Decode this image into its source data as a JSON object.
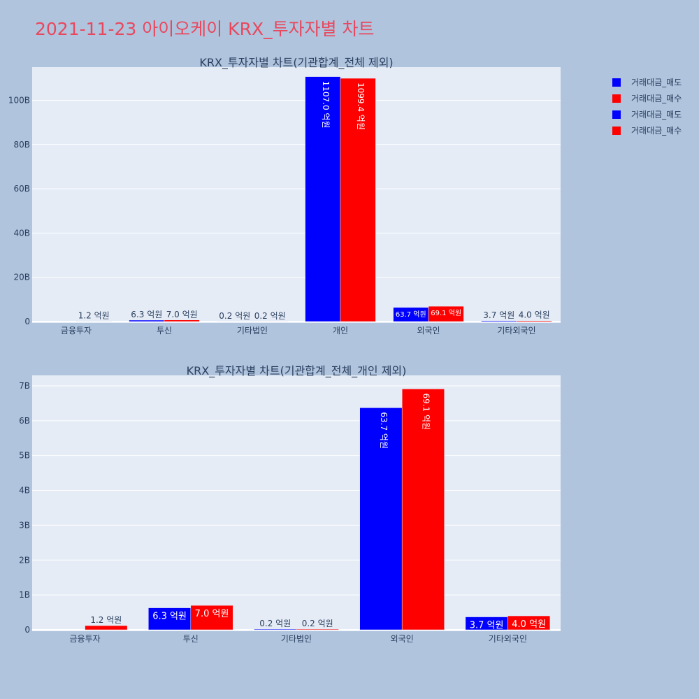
{
  "page": {
    "title": "2021-11-23 아이오케이 KRX_투자자별 차트"
  },
  "legend": [
    {
      "label": "거래대금_매도",
      "color": "#0000ff"
    },
    {
      "label": "거래대금_매수",
      "color": "#ff0000"
    },
    {
      "label": "거래대금_매도",
      "color": "#0000ff"
    },
    {
      "label": "거래대금_매수",
      "color": "#ff0000"
    }
  ],
  "colors": {
    "sell": "#0000ff",
    "buy": "#ff0000",
    "plot_bg": "#e5ecf6",
    "grid": "#ffffff",
    "axis_text": "#2a3f5f"
  },
  "chart_data": [
    {
      "type": "bar",
      "title": "KRX_투자자별 차트(기관합계_전체 제외)",
      "categories": [
        "금융투자",
        "투신",
        "기타법인",
        "개인",
        "외국인",
        "기타외국인"
      ],
      "ylim": [
        0,
        115
      ],
      "yticks": [
        0,
        20,
        40,
        60,
        80,
        100
      ],
      "ytick_labels": [
        "0",
        "20B",
        "40B",
        "60B",
        "80B",
        "100B"
      ],
      "series": [
        {
          "name": "거래대금_매도",
          "values": [
            0,
            0.63,
            0.02,
            110.7,
            6.37,
            0.37
          ],
          "labels": [
            "",
            "6.3 억원",
            "0.2 억원",
            "1107.0 억원",
            "63.7 억원",
            "3.7 억원"
          ]
        },
        {
          "name": "거래대금_매수",
          "values": [
            0.12,
            0.7,
            0.02,
            109.94,
            6.91,
            0.4
          ],
          "labels": [
            "1.2 억원",
            "7.0 억원",
            "0.2 억원",
            "1099.4 억원",
            "69.1 억원",
            "4.0 억원"
          ]
        }
      ]
    },
    {
      "type": "bar",
      "title": "KRX_투자자별 차트(기관합계_전체_개인 제외)",
      "categories": [
        "금융투자",
        "투신",
        "기타법인",
        "외국인",
        "기타외국인"
      ],
      "ylim": [
        0,
        7.3
      ],
      "yticks": [
        0,
        1,
        2,
        3,
        4,
        5,
        6,
        7
      ],
      "ytick_labels": [
        "0",
        "1B",
        "2B",
        "3B",
        "4B",
        "5B",
        "6B",
        "7B"
      ],
      "series": [
        {
          "name": "거래대금_매도",
          "values": [
            0,
            0.63,
            0.02,
            6.37,
            0.37
          ],
          "labels": [
            "",
            "6.3 억원",
            "0.2 억원",
            "63.7 억원",
            "3.7 억원"
          ]
        },
        {
          "name": "거래대금_매수",
          "values": [
            0.12,
            0.7,
            0.02,
            6.91,
            0.4
          ],
          "labels": [
            "1.2 억원",
            "7.0 억원",
            "0.2 억원",
            "69.1 억원",
            "4.0 억원"
          ]
        }
      ]
    }
  ]
}
